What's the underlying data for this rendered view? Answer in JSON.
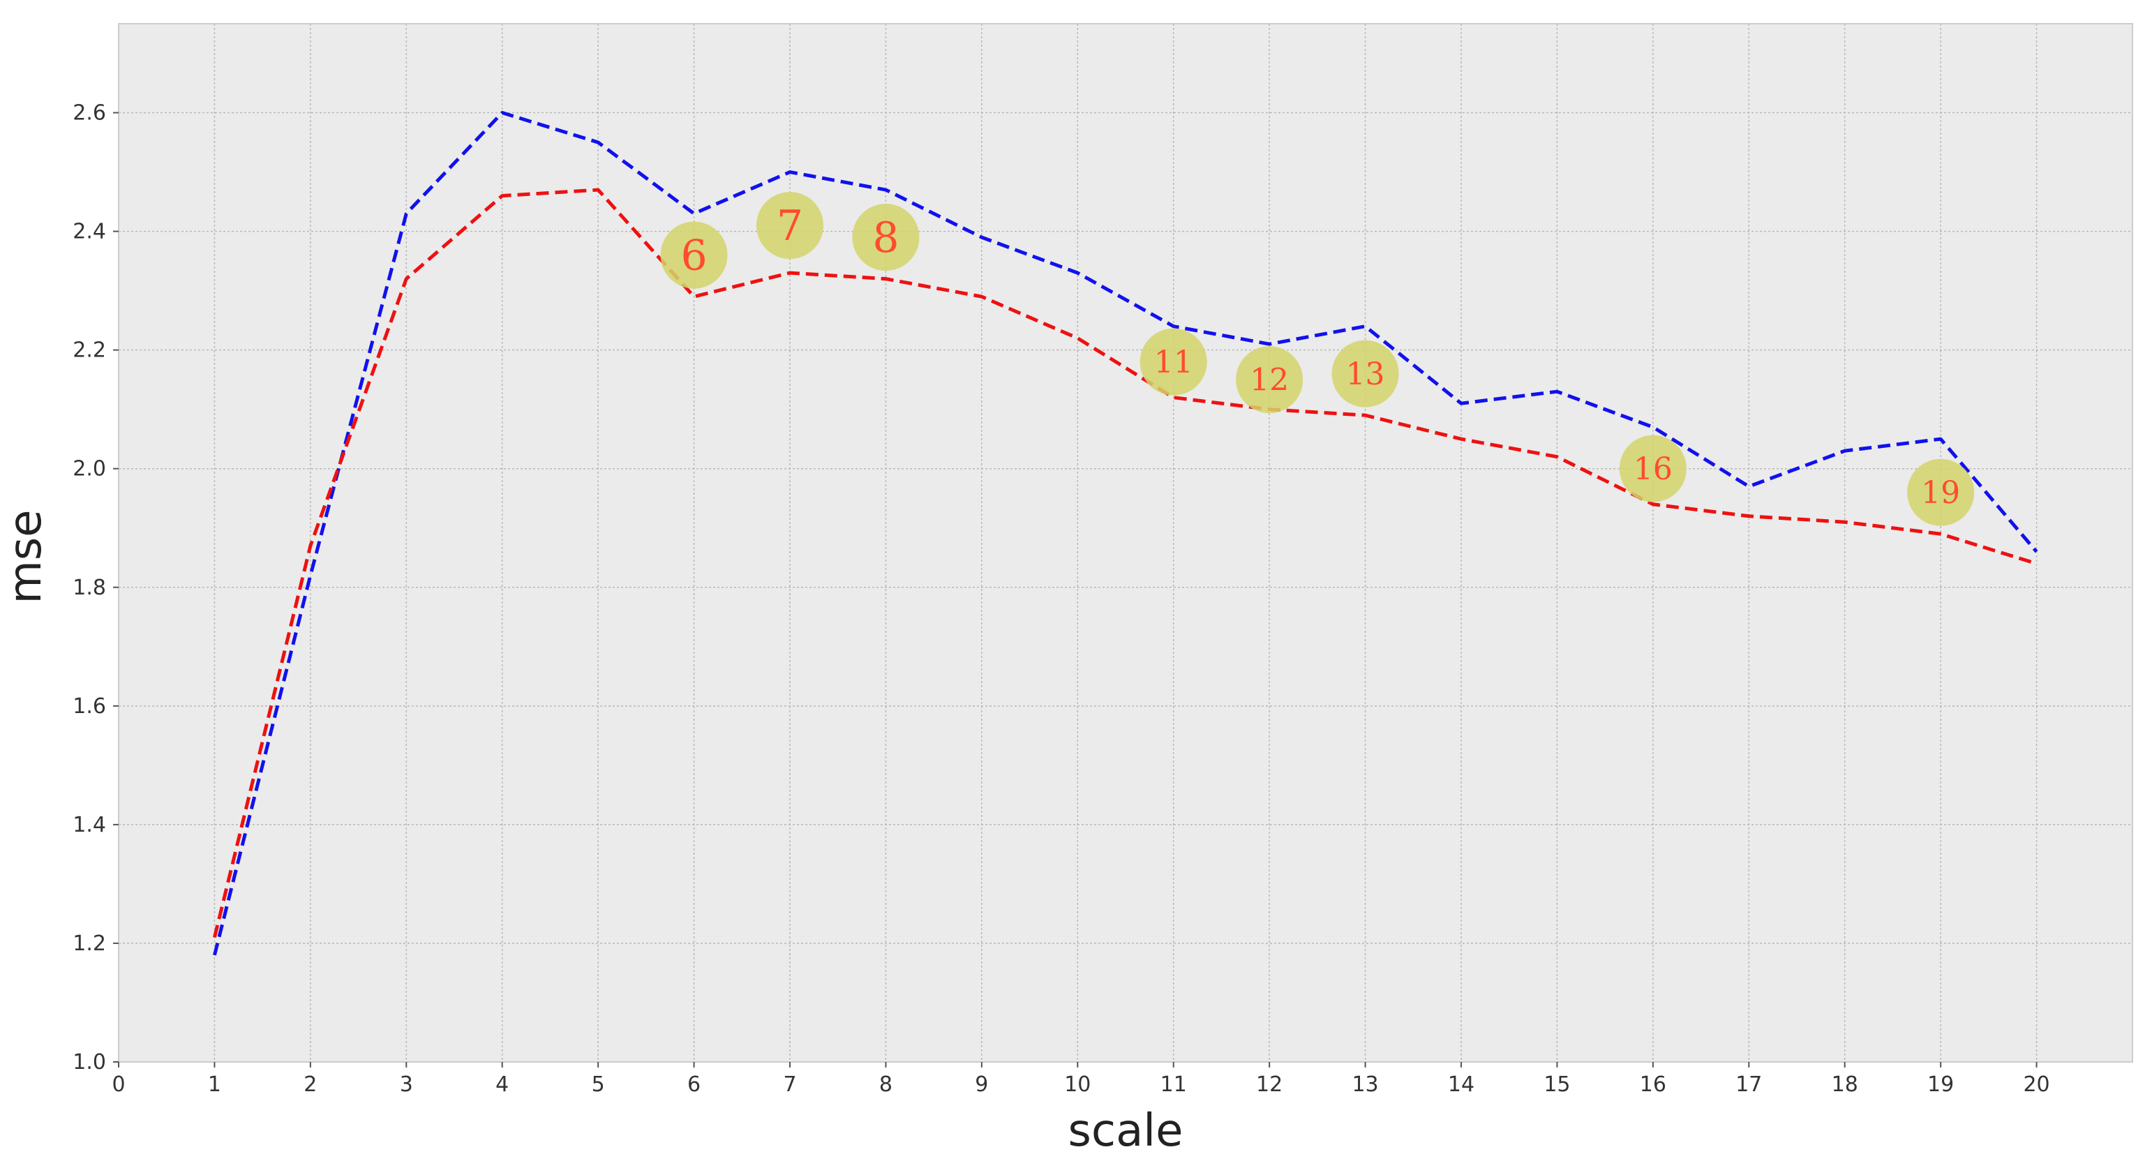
{
  "chart_data": {
    "type": "line",
    "title": "",
    "xlabel": "scale",
    "ylabel": "mse",
    "xlim": [
      0,
      21
    ],
    "ylim": [
      1.0,
      2.75
    ],
    "xticks": [
      "0",
      "1",
      "2",
      "3",
      "4",
      "5",
      "6",
      "7",
      "8",
      "9",
      "10",
      "11",
      "12",
      "13",
      "14",
      "15",
      "16",
      "17",
      "18",
      "19",
      "20"
    ],
    "yticks": [
      "1.0",
      "1.2",
      "1.4",
      "1.6",
      "1.8",
      "2.0",
      "2.2",
      "2.4",
      "2.6"
    ],
    "grid": true,
    "x": [
      1,
      2,
      3,
      4,
      5,
      6,
      7,
      8,
      9,
      10,
      11,
      12,
      13,
      14,
      15,
      16,
      17,
      18,
      19,
      20
    ],
    "series": [
      {
        "color": "#1111ee",
        "style": "dashed",
        "values": [
          1.18,
          1.82,
          2.43,
          2.6,
          2.55,
          2.43,
          2.5,
          2.47,
          2.39,
          2.33,
          2.24,
          2.21,
          2.24,
          2.11,
          2.13,
          2.07,
          1.97,
          2.03,
          2.05,
          1.86
        ]
      },
      {
        "color": "#ee1111",
        "style": "dashed",
        "values": [
          1.21,
          1.87,
          2.32,
          2.46,
          2.47,
          2.29,
          2.33,
          2.32,
          2.29,
          2.22,
          2.12,
          2.1,
          2.09,
          2.05,
          2.02,
          1.94,
          1.92,
          1.91,
          1.89,
          1.84
        ]
      }
    ],
    "annotations": [
      {
        "label": "6",
        "x": 6,
        "y": 2.36
      },
      {
        "label": "7",
        "x": 7,
        "y": 2.41
      },
      {
        "label": "8",
        "x": 8,
        "y": 2.39
      },
      {
        "label": "11",
        "x": 11,
        "y": 2.18
      },
      {
        "label": "12",
        "x": 12,
        "y": 2.15
      },
      {
        "label": "13",
        "x": 13,
        "y": 2.16
      },
      {
        "label": "16",
        "x": 16,
        "y": 2.0
      },
      {
        "label": "19",
        "x": 19,
        "y": 1.96
      }
    ],
    "colors": {
      "plot_background": "#ebebeb",
      "grid": "#b8b8b8",
      "annotation_fill": "#d4d46a",
      "annotation_text": "#ff4b2e"
    }
  }
}
